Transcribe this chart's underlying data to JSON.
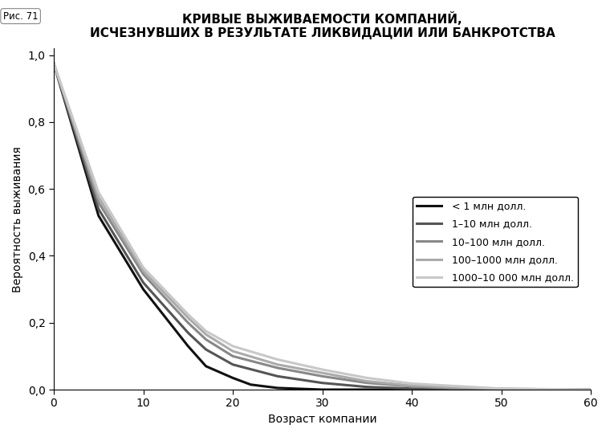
{
  "title_line1": "КРИВЫЕ ВЫЖИВАЕМОСТИ КОМПАНИЙ,",
  "title_line2": "ИСЧЕЗНУВШИХ В РЕЗУЛЬТАТЕ ЛИКВИДАЦИИ ИЛИ БАНКРОТСТВА",
  "xlabel": "Возраст компании",
  "ylabel": "Вероятность выживания",
  "fig_label": "Рис. 71",
  "xlim": [
    0,
    60
  ],
  "ylim": [
    0,
    1.02
  ],
  "xticks": [
    0,
    10,
    20,
    30,
    40,
    50,
    60
  ],
  "yticks": [
    0.0,
    0.2,
    0.4,
    0.6,
    0.8,
    1.0
  ],
  "ytick_labels": [
    "0,0",
    "0,2",
    "0,4",
    "0,6",
    "0,8",
    "1,0"
  ],
  "series": [
    {
      "label": "< 1 млн долл.",
      "color": "#111111",
      "linewidth": 2.2,
      "x": [
        0,
        5,
        10,
        15,
        17,
        20,
        22,
        25,
        30,
        60
      ],
      "y": [
        0.975,
        0.52,
        0.3,
        0.13,
        0.07,
        0.035,
        0.015,
        0.005,
        0.0,
        0.0
      ]
    },
    {
      "label": "1–10 млн долл.",
      "color": "#555555",
      "linewidth": 2.2,
      "x": [
        0,
        5,
        10,
        15,
        17,
        20,
        25,
        30,
        35,
        40,
        60
      ],
      "y": [
        0.975,
        0.54,
        0.32,
        0.17,
        0.12,
        0.075,
        0.04,
        0.02,
        0.008,
        0.003,
        0.0
      ]
    },
    {
      "label": "10–100 млн долл.",
      "color": "#888888",
      "linewidth": 2.2,
      "x": [
        0,
        5,
        10,
        15,
        17,
        20,
        25,
        30,
        35,
        40,
        45,
        60
      ],
      "y": [
        0.975,
        0.56,
        0.345,
        0.2,
        0.15,
        0.1,
        0.065,
        0.04,
        0.02,
        0.01,
        0.003,
        0.0
      ]
    },
    {
      "label": "100–1000 млн долл.",
      "color": "#aaaaaa",
      "linewidth": 2.2,
      "x": [
        0,
        5,
        10,
        15,
        17,
        20,
        25,
        30,
        35,
        40,
        50,
        60
      ],
      "y": [
        0.975,
        0.575,
        0.355,
        0.215,
        0.165,
        0.115,
        0.075,
        0.05,
        0.025,
        0.012,
        0.002,
        0.0
      ]
    },
    {
      "label": "1000–10 000 млн долл.",
      "color": "#c8c8c8",
      "linewidth": 2.2,
      "x": [
        0,
        5,
        10,
        15,
        17,
        20,
        25,
        30,
        35,
        40,
        50,
        60
      ],
      "y": [
        0.975,
        0.59,
        0.365,
        0.225,
        0.175,
        0.13,
        0.09,
        0.06,
        0.035,
        0.018,
        0.003,
        0.0
      ]
    }
  ],
  "background_color": "#ffffff",
  "title_fontsize": 11,
  "label_fontsize": 10,
  "tick_fontsize": 10,
  "legend_fontsize": 9
}
